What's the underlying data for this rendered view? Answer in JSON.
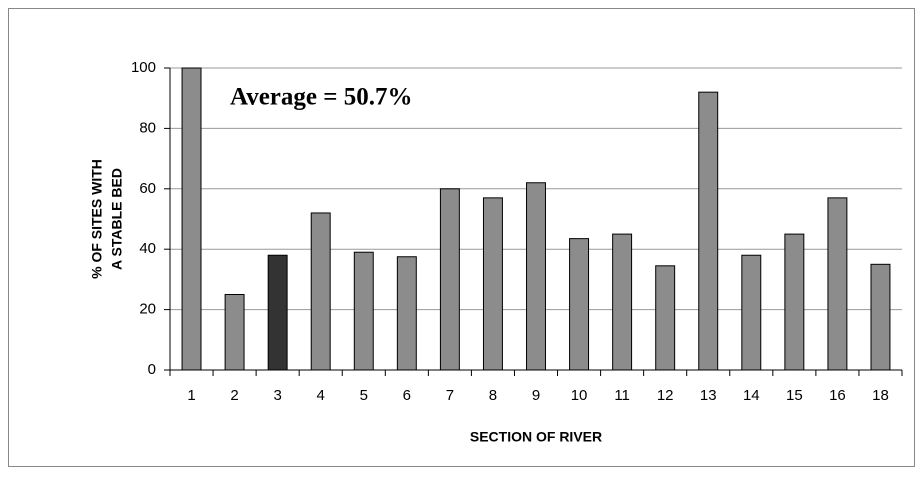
{
  "chart_data": {
    "type": "bar",
    "annotation": "Average = 50.7%",
    "x_label": "SECTION OF RIVER",
    "y_label": [
      "% OF SITES WITH",
      "A STABLE BED"
    ],
    "categories": [
      "1",
      "2",
      "3",
      "4",
      "5",
      "6",
      "7",
      "8",
      "9",
      "10",
      "11",
      "12",
      "13",
      "14",
      "15",
      "16",
      "18"
    ],
    "values": [
      100,
      25,
      38,
      52,
      39,
      37.5,
      60,
      57,
      62,
      43.5,
      45,
      34.5,
      92,
      38,
      45,
      57,
      35
    ],
    "colors": [
      "#8c8c8c",
      "#8c8c8c",
      "#333333",
      "#8c8c8c",
      "#8c8c8c",
      "#8c8c8c",
      "#8c8c8c",
      "#8c8c8c",
      "#8c8c8c",
      "#8c8c8c",
      "#8c8c8c",
      "#8c8c8c",
      "#8c8c8c",
      "#8c8c8c",
      "#8c8c8c",
      "#8c8c8c",
      "#8c8c8c"
    ],
    "ylim": [
      0,
      100
    ],
    "yticks": [
      0,
      20,
      40,
      60,
      80,
      100
    ],
    "grid": true
  }
}
